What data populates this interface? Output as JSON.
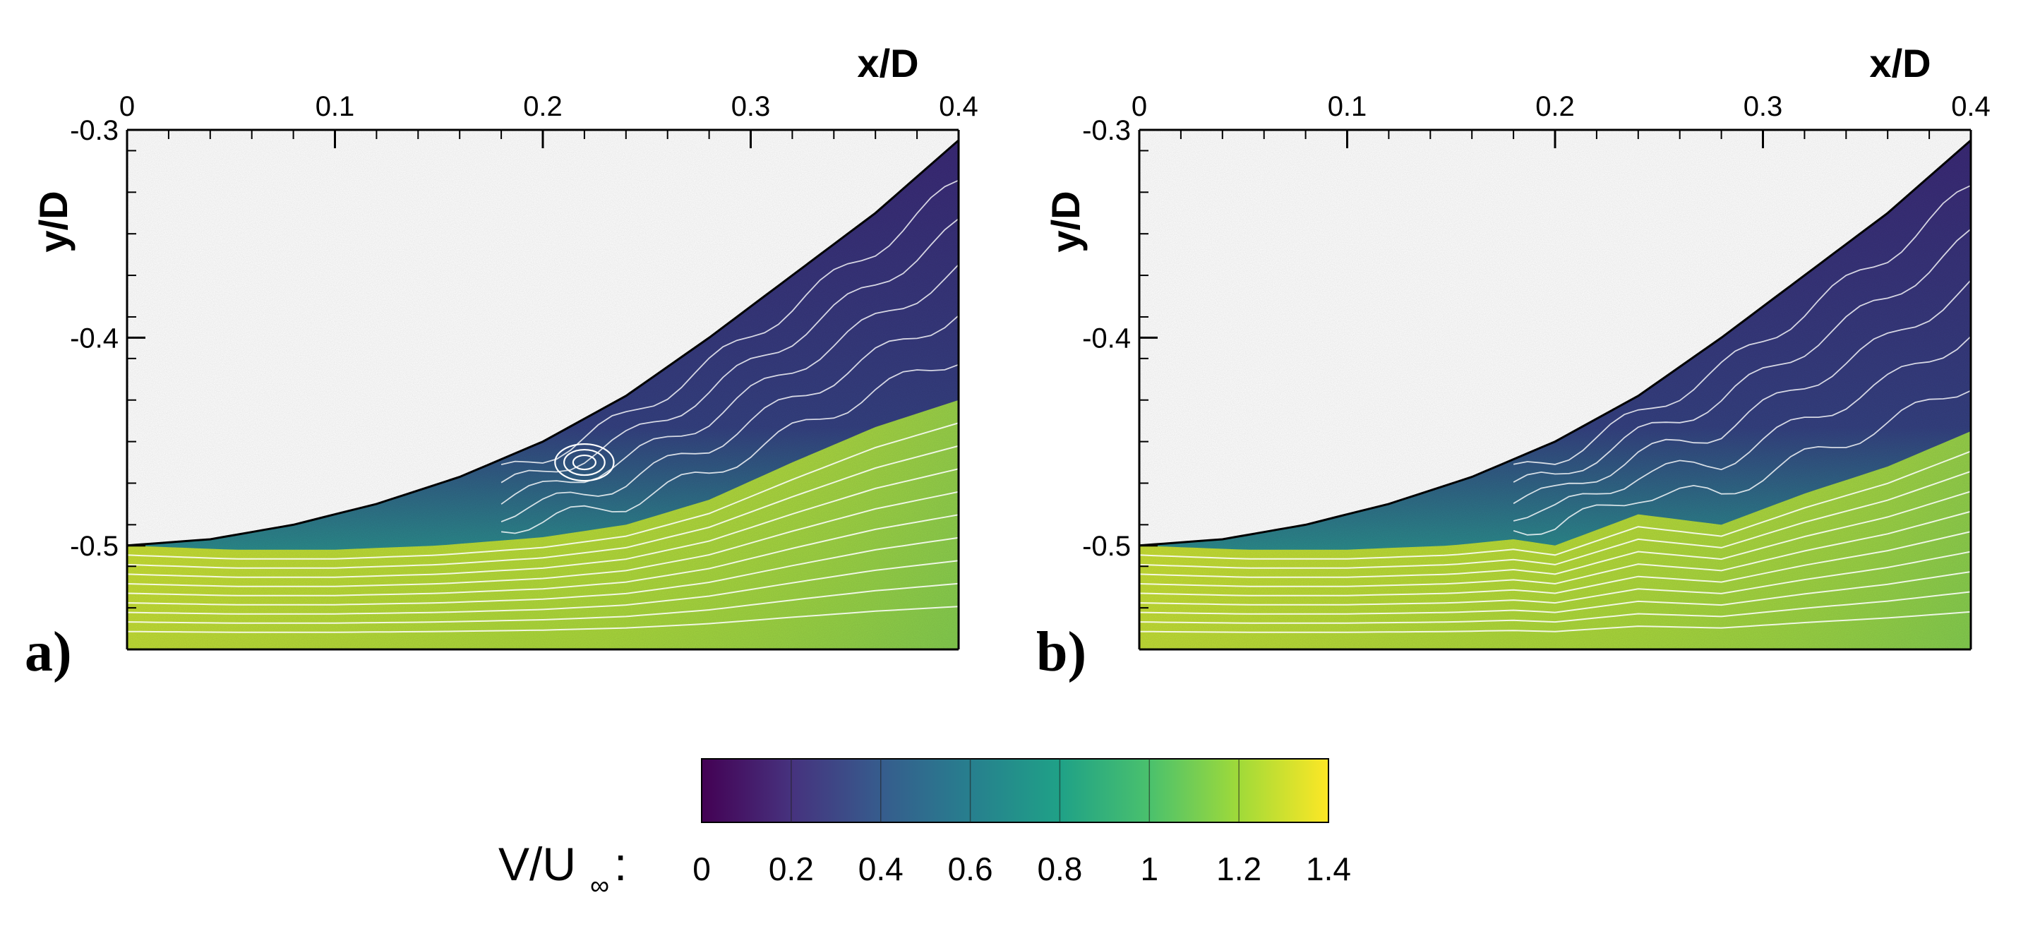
{
  "chart_data": [
    {
      "type": "heatmap",
      "panel_label": "a)",
      "xlabel": "x/D",
      "ylabel": "y/D",
      "xlim": [
        0,
        0.4
      ],
      "ylim": [
        -0.55,
        -0.3
      ],
      "xticks": [
        0,
        0.1,
        0.2,
        0.3,
        0.4
      ],
      "xtick_labels": [
        "0",
        "0.1",
        "0.2",
        "0.3",
        "0.4"
      ],
      "yticks": [
        -0.3,
        -0.4,
        -0.5
      ],
      "ytick_labels": [
        "-0.3",
        "-0.4",
        "-0.5"
      ],
      "wall_profile": {
        "x": [
          0,
          0.04,
          0.08,
          0.12,
          0.16,
          0.2,
          0.24,
          0.28,
          0.32,
          0.36,
          0.4
        ],
        "y": [
          -0.5,
          -0.497,
          -0.49,
          -0.48,
          -0.467,
          -0.45,
          -0.428,
          -0.4,
          -0.37,
          -0.34,
          -0.305
        ]
      },
      "separated_layer_bottom": {
        "x": [
          0,
          0.05,
          0.1,
          0.15,
          0.2,
          0.24,
          0.28,
          0.32,
          0.36,
          0.4
        ],
        "y": [
          -0.5,
          -0.502,
          -0.502,
          -0.5,
          -0.496,
          -0.49,
          -0.478,
          -0.46,
          -0.443,
          -0.43
        ]
      },
      "vortex_center": [
        0.22,
        -0.46
      ],
      "field": "V/U∞"
    },
    {
      "type": "heatmap",
      "panel_label": "b)",
      "xlabel": "x/D",
      "ylabel": "y/D",
      "xlim": [
        0,
        0.4
      ],
      "ylim": [
        -0.55,
        -0.3
      ],
      "xticks": [
        0,
        0.1,
        0.2,
        0.3,
        0.4
      ],
      "xtick_labels": [
        "0",
        "0.1",
        "0.2",
        "0.3",
        "0.4"
      ],
      "yticks": [
        -0.3,
        -0.4,
        -0.5
      ],
      "ytick_labels": [
        "-0.3",
        "-0.4",
        "-0.5"
      ],
      "wall_profile": {
        "x": [
          0,
          0.04,
          0.08,
          0.12,
          0.16,
          0.2,
          0.24,
          0.28,
          0.32,
          0.36,
          0.4
        ],
        "y": [
          -0.5,
          -0.497,
          -0.49,
          -0.48,
          -0.467,
          -0.45,
          -0.428,
          -0.4,
          -0.37,
          -0.34,
          -0.305
        ]
      },
      "separated_layer_bottom": {
        "x": [
          0,
          0.05,
          0.1,
          0.15,
          0.18,
          0.2,
          0.24,
          0.28,
          0.32,
          0.36,
          0.4
        ],
        "y": [
          -0.5,
          -0.502,
          -0.502,
          -0.5,
          -0.497,
          -0.5,
          -0.485,
          -0.49,
          -0.475,
          -0.462,
          -0.445
        ]
      },
      "field": "V/U∞"
    }
  ],
  "colorbar": {
    "title": "V/U",
    "title_subscript": "∞",
    "title_suffix": ":",
    "range": [
      0,
      1.4
    ],
    "ticks": [
      0,
      0.2,
      0.4,
      0.6,
      0.8,
      1,
      1.2,
      1.4
    ],
    "tick_labels": [
      "0",
      "0.2",
      "0.4",
      "0.6",
      "0.8",
      "1",
      "1.2",
      "1.4"
    ],
    "colors": [
      "#440154",
      "#46327e",
      "#365c8d",
      "#277f8e",
      "#1fa187",
      "#4ac16d",
      "#a0da39",
      "#fde725"
    ]
  },
  "colors": {
    "low_velocity": "#3b2a78",
    "mid_velocity": "#2c8f8a",
    "high_velocity": "#a5d43a",
    "streamline": "#ffffff"
  }
}
